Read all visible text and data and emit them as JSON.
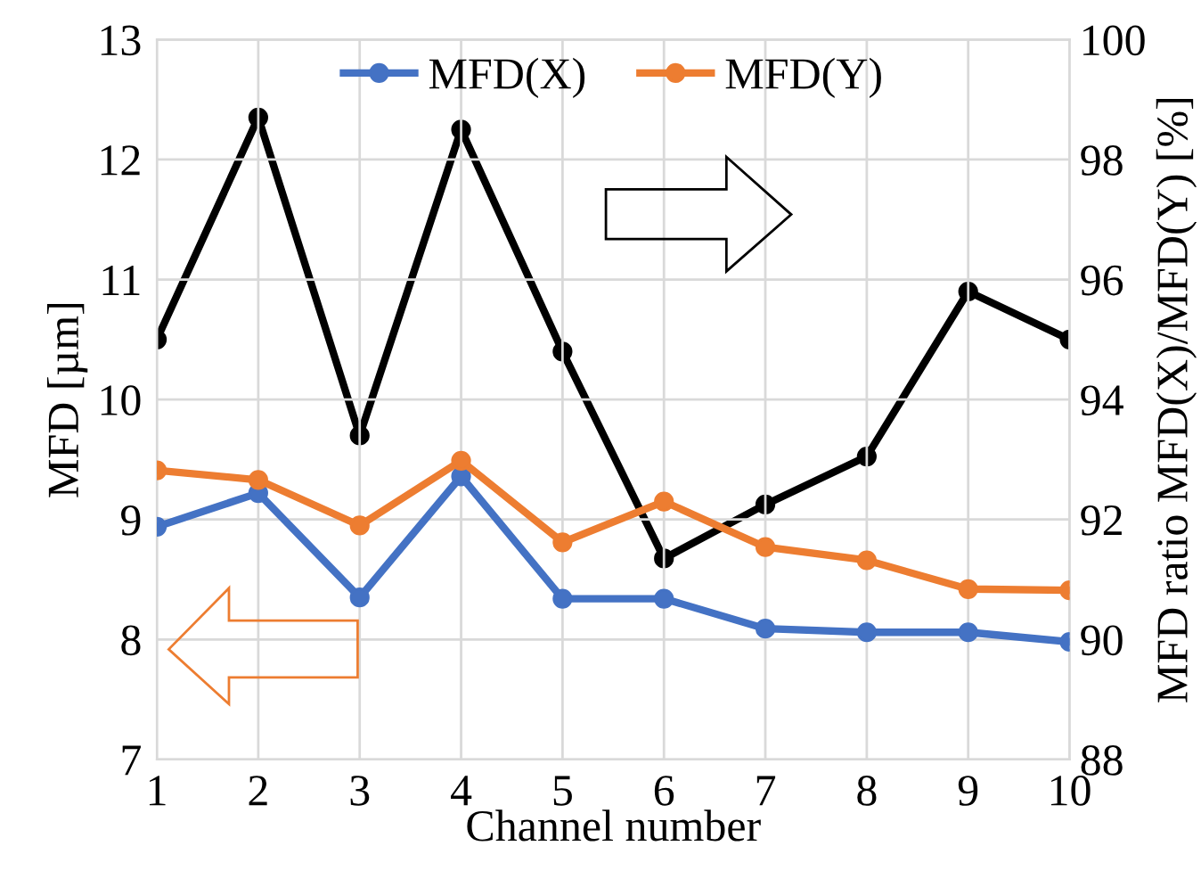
{
  "chart_data": {
    "type": "line",
    "xlabel": "Channel number",
    "ylabel": "MFD [µm]",
    "y2label": "MFD ratio MFD(X)/MFD(Y) [%]",
    "x": [
      1,
      2,
      3,
      4,
      5,
      6,
      7,
      8,
      9,
      10
    ],
    "series": [
      {
        "name": "MFD(X)",
        "color": "#4472c4",
        "values": [
          8.94,
          9.22,
          8.35,
          9.36,
          8.34,
          8.34,
          8.09,
          8.06,
          8.06,
          7.98
        ]
      },
      {
        "name": "MFD(Y)",
        "color": "#ed7d31",
        "values": [
          9.41,
          9.33,
          8.95,
          9.49,
          8.81,
          9.15,
          8.77,
          8.66,
          8.42,
          8.41
        ]
      },
      {
        "color": "#000000",
        "axis": "y2",
        "values": [
          95.0,
          98.7,
          93.4,
          98.5,
          94.8,
          91.35,
          92.25,
          93.05,
          95.8,
          95.0
        ]
      }
    ],
    "xlim": [
      1,
      10
    ],
    "xticks": [
      1,
      2,
      3,
      4,
      5,
      6,
      7,
      8,
      9,
      10
    ],
    "ylim": [
      7,
      13
    ],
    "yticks": [
      7,
      8,
      9,
      10,
      11,
      12,
      13
    ],
    "y2lim": [
      88,
      100
    ],
    "y2ticks": [
      88,
      90,
      92,
      94,
      96,
      98,
      100
    ],
    "grid": true,
    "legend": "top",
    "marker": "circle",
    "line_style": "solid"
  }
}
